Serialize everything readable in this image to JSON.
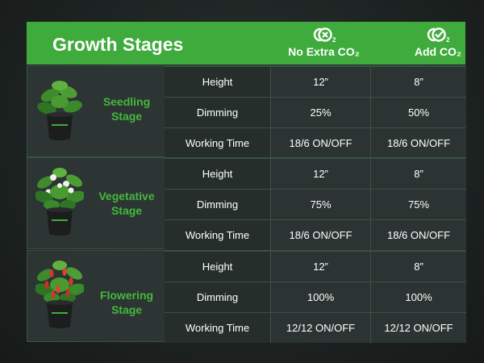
{
  "header": {
    "title": "Growth Stages",
    "col_a_label": "No Extra CO₂",
    "col_b_label": "Add CO₂",
    "col_a_icon": "co2-no-icon",
    "col_b_icon": "co2-check-icon"
  },
  "stages": [
    {
      "name_line1": "Seedling",
      "name_line2": "Stage",
      "rows": [
        {
          "label": "Height",
          "no_co2": "12”",
          "add_co2": "8”"
        },
        {
          "label": "Dimming",
          "no_co2": "25%",
          "add_co2": "50%"
        },
        {
          "label": "Working Time",
          "no_co2": "18/6 ON/OFF",
          "add_co2": "18/6 ON/OFF"
        }
      ]
    },
    {
      "name_line1": "Vegetative",
      "name_line2": "Stage",
      "rows": [
        {
          "label": "Height",
          "no_co2": "12”",
          "add_co2": "8”"
        },
        {
          "label": "Dimming",
          "no_co2": "75%",
          "add_co2": "75%"
        },
        {
          "label": "Working Time",
          "no_co2": "18/6 ON/OFF",
          "add_co2": "18/6 ON/OFF"
        }
      ]
    },
    {
      "name_line1": "Flowering",
      "name_line2": "Stage",
      "rows": [
        {
          "label": "Height",
          "no_co2": "12”",
          "add_co2": "8”"
        },
        {
          "label": "Dimming",
          "no_co2": "100%",
          "add_co2": "100%"
        },
        {
          "label": "Working Time",
          "no_co2": "12/12 ON/OFF",
          "add_co2": "12/12 ON/OFF"
        }
      ]
    }
  ],
  "colors": {
    "accent_green": "#3fab3c",
    "stage_name_green": "#45b83f",
    "background": "#1d2322"
  }
}
